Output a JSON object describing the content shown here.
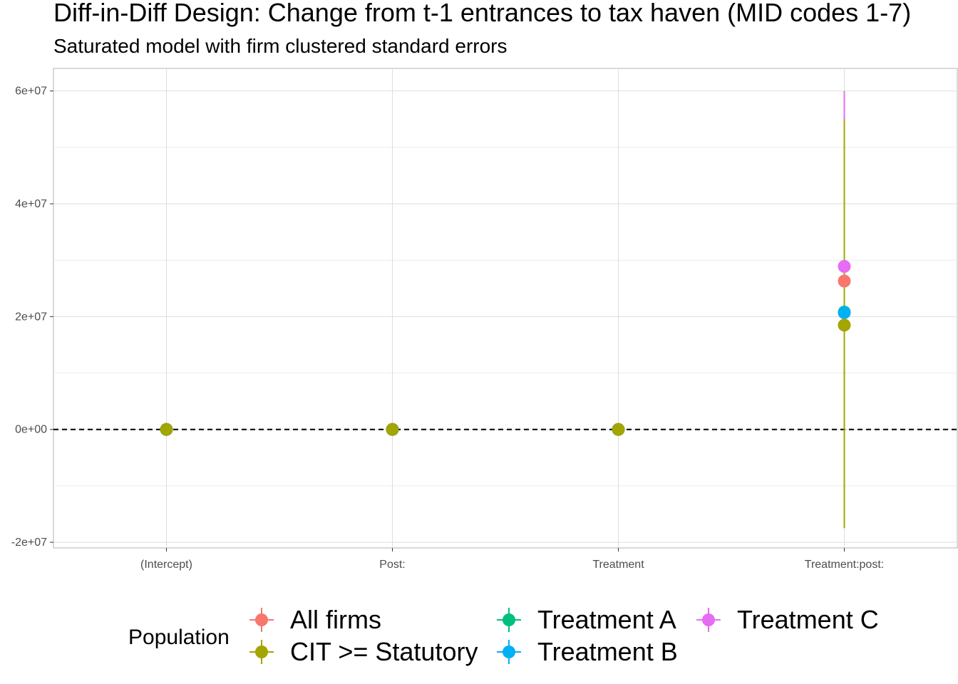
{
  "chart_data": {
    "type": "scatter",
    "title": "Diff-in-Diff Design: Change from t-1 entrances to tax haven (MID codes 1-7)",
    "subtitle": "Saturated model with firm clustered standard errors",
    "categories": [
      "(Intercept)",
      "Post:",
      "Treatment",
      "Treatment:post:"
    ],
    "y_ticks": [
      -20000000,
      0,
      20000000,
      40000000,
      60000000
    ],
    "y_tick_labels": [
      "-2e+07",
      "0e+00",
      "2e+07",
      "4e+07",
      "6e+07"
    ],
    "ylim": [
      -21000000,
      64000000
    ],
    "reference_line": 0,
    "grid": true,
    "legend_title": "Population",
    "legend_position": "bottom",
    "series": [
      {
        "name": "All firms",
        "color": "#F8766D",
        "points": [
          {
            "category": "(Intercept)",
            "estimate": 0,
            "lo": 0,
            "hi": 0
          },
          {
            "category": "Post:",
            "estimate": 0,
            "lo": 0,
            "hi": 0
          },
          {
            "category": "Treatment",
            "estimate": 0,
            "lo": 0,
            "hi": 0
          },
          {
            "category": "Treatment:post:",
            "estimate": 26300000,
            "lo": 5000000,
            "hi": 48000000
          }
        ]
      },
      {
        "name": "Treatment C",
        "color": "#E76BF3",
        "points": [
          {
            "category": "(Intercept)",
            "estimate": 0,
            "lo": 0,
            "hi": 0
          },
          {
            "category": "Post:",
            "estimate": 0,
            "lo": 0,
            "hi": 0
          },
          {
            "category": "Treatment",
            "estimate": 0,
            "lo": 0,
            "hi": 0
          },
          {
            "category": "Treatment:post:",
            "estimate": 28900000,
            "lo": -2000000,
            "hi": 60000000
          }
        ]
      },
      {
        "name": "Treatment A",
        "color": "#00BF7D",
        "points": [
          {
            "category": "(Intercept)",
            "estimate": 0,
            "lo": 0,
            "hi": 0
          },
          {
            "category": "Post:",
            "estimate": 0,
            "lo": 0,
            "hi": 0
          },
          {
            "category": "Treatment",
            "estimate": 0,
            "lo": 0,
            "hi": 0
          },
          {
            "category": "Treatment:post:",
            "estimate": 20800000,
            "lo": -8000000,
            "hi": 50000000
          }
        ]
      },
      {
        "name": "Treatment B",
        "color": "#00B0F6",
        "points": [
          {
            "category": "(Intercept)",
            "estimate": 0,
            "lo": 0,
            "hi": 0
          },
          {
            "category": "Post:",
            "estimate": 0,
            "lo": 0,
            "hi": 0
          },
          {
            "category": "Treatment",
            "estimate": 0,
            "lo": 0,
            "hi": 0
          },
          {
            "category": "Treatment:post:",
            "estimate": 20700000,
            "lo": -8000000,
            "hi": 50000000
          }
        ]
      },
      {
        "name": "CIT >= Statutory",
        "color": "#A3A500",
        "points": [
          {
            "category": "(Intercept)",
            "estimate": 0,
            "lo": 0,
            "hi": 0
          },
          {
            "category": "Post:",
            "estimate": 0,
            "lo": 0,
            "hi": 0
          },
          {
            "category": "Treatment",
            "estimate": 0,
            "lo": 0,
            "hi": 0
          },
          {
            "category": "Treatment:post:",
            "estimate": 18500000,
            "lo": -17500000,
            "hi": 55000000
          }
        ]
      }
    ],
    "legend_columns": [
      [
        "All firms",
        "CIT >= Statutory"
      ],
      [
        "Treatment A",
        "Treatment B"
      ],
      [
        "Treatment C"
      ]
    ]
  }
}
